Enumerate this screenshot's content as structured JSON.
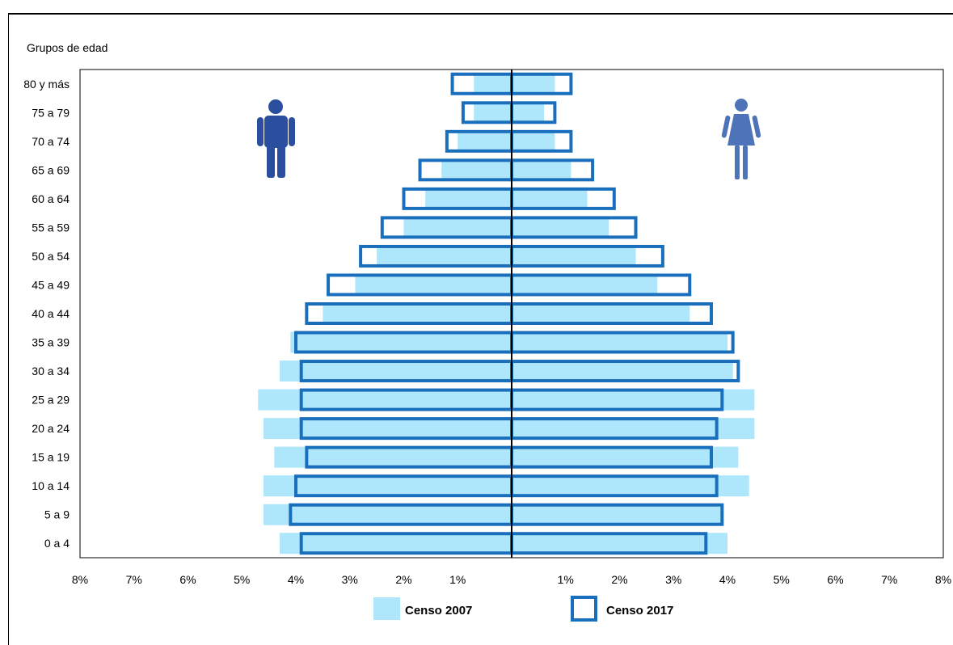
{
  "chart_data": {
    "type": "bar",
    "subtype": "population-pyramid",
    "title": "",
    "ylabel": "Grupos de edad",
    "xlim": [
      -8,
      8
    ],
    "x_unit": "%",
    "x_tick_labels": [
      "8%",
      "7%",
      "6%",
      "5%",
      "4%",
      "3%",
      "2%",
      "1%",
      "1%",
      "2%",
      "3%",
      "4%",
      "5%",
      "6%",
      "7%",
      "8%"
    ],
    "categories": [
      "0 a 4",
      "5 a 9",
      "10 a 14",
      "15 a 19",
      "20 a 24",
      "25 a 29",
      "30 a 34",
      "35 a 39",
      "40 a 44",
      "45 a 49",
      "50 a 54",
      "55 a 59",
      "60 a 64",
      "65 a 69",
      "70 a 74",
      "75 a 79",
      "80 y más"
    ],
    "series": [
      {
        "name": "Censo 2007",
        "style": "filled",
        "color": "#aee7fb",
        "male": [
          4.3,
          4.6,
          4.6,
          4.4,
          4.6,
          4.7,
          4.3,
          4.1,
          3.5,
          2.9,
          2.5,
          2.0,
          1.6,
          1.3,
          1.0,
          0.7,
          0.7
        ],
        "female": [
          4.0,
          3.9,
          4.4,
          4.2,
          4.5,
          4.5,
          4.1,
          4.0,
          3.3,
          2.7,
          2.3,
          1.8,
          1.4,
          1.1,
          0.8,
          0.6,
          0.8
        ]
      },
      {
        "name": "Censo 2017",
        "style": "outline",
        "color": "#1a6fbd",
        "male": [
          3.9,
          4.1,
          4.0,
          3.8,
          3.9,
          3.9,
          3.9,
          4.0,
          3.8,
          3.4,
          2.8,
          2.4,
          2.0,
          1.7,
          1.2,
          0.9,
          1.1
        ],
        "female": [
          3.6,
          3.9,
          3.8,
          3.7,
          3.8,
          3.9,
          4.2,
          4.1,
          3.7,
          3.3,
          2.8,
          2.3,
          1.9,
          1.5,
          1.1,
          0.8,
          1.1
        ]
      }
    ],
    "legend": {
      "position": "bottom"
    },
    "icons": {
      "left": "male-figure-icon",
      "right": "female-figure-icon",
      "color": "#2b4f9e"
    }
  }
}
